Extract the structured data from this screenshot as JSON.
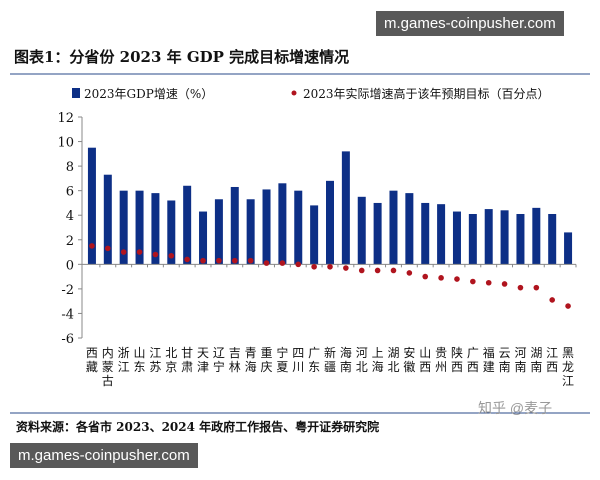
{
  "chart_data": {
    "type": "bar",
    "title": "图表1：分省份 2023 年 GDP 完成目标增速情况",
    "categories": [
      "西藏",
      "内蒙古",
      "浙江",
      "山东",
      "江苏",
      "北京",
      "甘肃",
      "天津",
      "辽宁",
      "吉林",
      "青海",
      "重庆",
      "宁夏",
      "四川",
      "广东",
      "新疆",
      "海南",
      "河北",
      "上海",
      "湖北",
      "安徽",
      "山西",
      "贵州",
      "陕西",
      "广西",
      "福建",
      "云南",
      "河南",
      "湖南",
      "江西",
      "黑龙江"
    ],
    "series": [
      {
        "name": "2023年GDP增速（%）",
        "type": "bar",
        "color": "#0d2f86",
        "values": [
          9.5,
          7.3,
          6.0,
          6.0,
          5.8,
          5.2,
          6.4,
          4.3,
          5.3,
          6.3,
          5.3,
          6.1,
          6.6,
          6.0,
          4.8,
          6.8,
          9.2,
          5.5,
          5.0,
          6.0,
          5.8,
          5.0,
          4.9,
          4.3,
          4.1,
          4.5,
          4.4,
          4.1,
          4.6,
          4.1,
          2.6
        ]
      },
      {
        "name": "2023年实际增速高于该年预期目标（百分点）",
        "type": "scatter",
        "color": "#b0141e",
        "values": [
          1.5,
          1.3,
          1.0,
          1.0,
          0.8,
          0.7,
          0.4,
          0.3,
          0.3,
          0.3,
          0.3,
          0.1,
          0.1,
          0.0,
          -0.2,
          -0.2,
          -0.3,
          -0.5,
          -0.5,
          -0.5,
          -0.7,
          -1.0,
          -1.1,
          -1.2,
          -1.4,
          -1.5,
          -1.6,
          -1.9,
          -1.9,
          -2.9,
          -3.4
        ]
      }
    ],
    "ylim": [
      -6,
      12
    ],
    "yticks": [
      "-6",
      "-4",
      "-2",
      "0",
      "2",
      "4",
      "6",
      "8",
      "10",
      "12"
    ],
    "grid": false,
    "legend": "top"
  },
  "source": "资料来源：各省市 2023、2024 年政府工作报告、粤开证券研究院",
  "credit": "知乎 @麦子",
  "watermark": "m.games-coinpusher.com"
}
